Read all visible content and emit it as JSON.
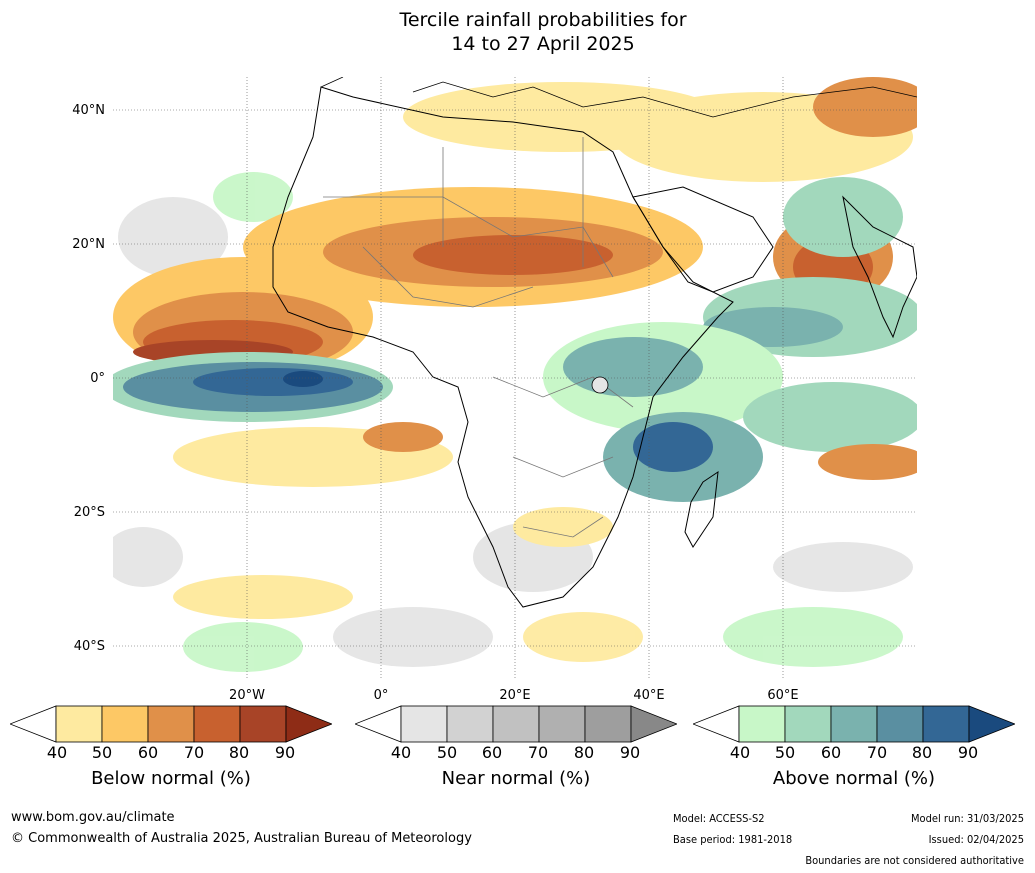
{
  "title": {
    "line1": "Tercile rainfall probabilities for",
    "line2": "14 to 27 April 2025"
  },
  "map": {
    "lat_labels": [
      "40°N",
      "20°N",
      "0°",
      "20°S",
      "40°S"
    ],
    "lon_labels": [
      "20°W",
      "0°",
      "20°E",
      "40°E",
      "60°E"
    ]
  },
  "colorbars": [
    {
      "title": "Below normal (%)",
      "ticks": [
        "40",
        "50",
        "60",
        "70",
        "80",
        "90"
      ],
      "colors": [
        "#ffffff",
        "#feeaa0",
        "#fdc865",
        "#e09049",
        "#c8612f",
        "#a84427",
        "#8e2c16"
      ]
    },
    {
      "title": "Near normal (%)",
      "ticks": [
        "40",
        "50",
        "60",
        "70",
        "80",
        "90"
      ],
      "colors": [
        "#ffffff",
        "#e5e5e5",
        "#d2d2d2",
        "#c1c1c1",
        "#b0b0b0",
        "#9e9e9e",
        "#888888"
      ]
    },
    {
      "title": "Above normal (%)",
      "ticks": [
        "40",
        "50",
        "60",
        "70",
        "80",
        "90"
      ],
      "colors": [
        "#ffffff",
        "#c8f7c8",
        "#a2d8bc",
        "#7ab2ae",
        "#5a8fa1",
        "#336795",
        "#1a4a7e"
      ]
    }
  ],
  "footer": {
    "website": "www.bom.gov.au/climate",
    "copyright": "© Commonwealth of Australia 2025, Australian Bureau of Meteorology",
    "model": "Model: ACCESS-S2",
    "base_period": "Base period: 1981-2018",
    "model_run": "Model run: 31/03/2025",
    "issued": "Issued: 02/04/2025",
    "disclaimer": "Boundaries are not considered authoritative"
  }
}
